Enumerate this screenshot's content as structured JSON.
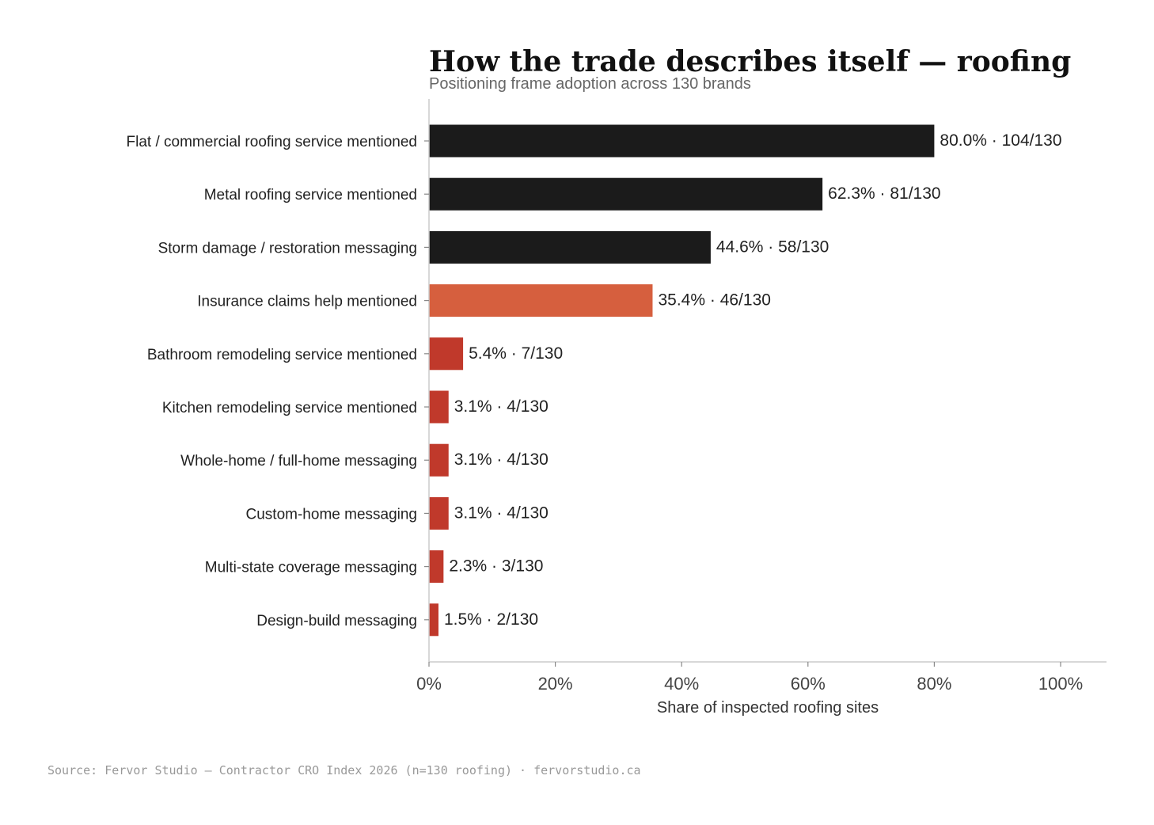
{
  "chart_data": {
    "type": "bar",
    "orientation": "horizontal",
    "title": "How the trade describes itself — roofing",
    "subtitle": "Positioning frame adoption across 130 brands",
    "xlabel": "Share of inspected roofing sites",
    "ylabel": "",
    "xlim": [
      0,
      100
    ],
    "xticks": [
      0,
      20,
      40,
      60,
      80,
      100
    ],
    "xtick_labels": [
      "0%",
      "20%",
      "40%",
      "60%",
      "80%",
      "100%"
    ],
    "grid": false,
    "legend": "none",
    "categories": [
      "Flat / commercial roofing service mentioned",
      "Metal roofing service mentioned",
      "Storm damage / restoration messaging",
      "Insurance claims help mentioned",
      "Bathroom remodeling service mentioned",
      "Kitchen remodeling service mentioned",
      "Whole-home / full-home messaging",
      "Custom-home messaging",
      "Multi-state coverage messaging",
      "Design-build messaging"
    ],
    "values": [
      80.0,
      62.3,
      44.6,
      35.4,
      5.4,
      3.1,
      3.1,
      3.1,
      2.3,
      1.5
    ],
    "data_labels": [
      "80.0% · 104/130",
      "62.3% · 81/130",
      "44.6% · 58/130",
      "35.4% · 46/130",
      "5.4% · 7/130",
      "3.1% · 4/130",
      "3.1% · 4/130",
      "3.1% · 4/130",
      "2.3% · 3/130",
      "1.5% · 2/130"
    ],
    "bar_colors": [
      "#1b1b1b",
      "#1b1b1b",
      "#1b1b1b",
      "#d65f3e",
      "#c0392b",
      "#c0392b",
      "#c0392b",
      "#c0392b",
      "#c0392b",
      "#c0392b"
    ]
  },
  "source": "Source: Fervor Studio — Contractor CRO Index 2026 (n=130 roofing) · fervorstudio.ca"
}
